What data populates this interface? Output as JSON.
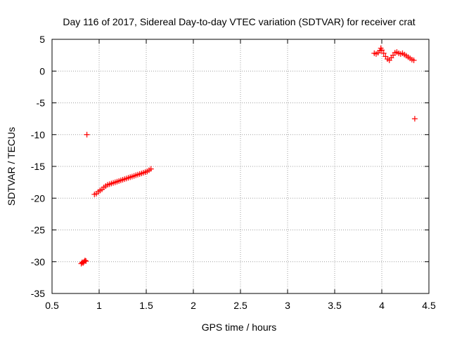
{
  "chart_data": {
    "type": "scatter",
    "title": "Day 116 of 2017, Sidereal Day-to-day VTEC variation (SDTVAR) for receiver crat",
    "xlabel": "GPS time / hours",
    "ylabel": "SDTVAR / TECUs",
    "xlim": [
      0.5,
      4.5
    ],
    "ylim": [
      -35,
      5
    ],
    "xticks": [
      0.5,
      1,
      1.5,
      2,
      2.5,
      3,
      3.5,
      4,
      4.5
    ],
    "xtick_labels": [
      "0.5",
      "1",
      "1.5",
      "2",
      "2.5",
      "3",
      "3.5",
      "4",
      "4.5"
    ],
    "yticks": [
      -35,
      -30,
      -25,
      -20,
      -15,
      -10,
      -5,
      0,
      5
    ],
    "ytick_labels": [
      "-35",
      "-30",
      "-25",
      "-20",
      "-15",
      "-10",
      "-5",
      "0",
      "5"
    ],
    "grid": true,
    "marker": "+",
    "color": "#ff0000",
    "series": [
      {
        "name": "SDTVAR",
        "x": [
          0.81,
          0.82,
          0.83,
          0.84,
          0.85,
          0.86,
          0.87,
          0.95,
          0.97,
          0.99,
          1.01,
          1.03,
          1.05,
          1.07,
          1.09,
          1.11,
          1.13,
          1.15,
          1.17,
          1.19,
          1.21,
          1.23,
          1.25,
          1.27,
          1.29,
          1.31,
          1.33,
          1.35,
          1.37,
          1.39,
          1.41,
          1.43,
          1.45,
          1.47,
          1.49,
          1.51,
          1.53,
          1.55,
          3.92,
          3.94,
          3.96,
          3.98,
          3.99,
          4.0,
          4.02,
          4.04,
          4.06,
          4.08,
          4.1,
          4.12,
          4.14,
          4.16,
          4.18,
          4.2,
          4.22,
          4.24,
          4.26,
          4.28,
          4.3,
          4.32,
          4.34,
          4.35
        ],
        "y": [
          -30.3,
          -30.1,
          -30.2,
          -30.0,
          -29.8,
          -29.9,
          -10.0,
          -19.4,
          -19.3,
          -19.0,
          -18.8,
          -18.6,
          -18.3,
          -18.1,
          -17.9,
          -17.8,
          -17.7,
          -17.6,
          -17.5,
          -17.4,
          -17.3,
          -17.2,
          -17.1,
          -17.0,
          -16.9,
          -16.8,
          -16.7,
          -16.6,
          -16.5,
          -16.4,
          -16.3,
          -16.2,
          -16.1,
          -16.0,
          -15.9,
          -15.8,
          -15.6,
          -15.4,
          2.8,
          2.7,
          2.9,
          3.2,
          3.6,
          3.3,
          2.8,
          2.3,
          1.9,
          1.7,
          2.1,
          2.5,
          2.9,
          3.0,
          2.8,
          2.7,
          2.8,
          2.6,
          2.4,
          2.2,
          2.0,
          1.8,
          1.7,
          -7.5
        ]
      }
    ]
  }
}
